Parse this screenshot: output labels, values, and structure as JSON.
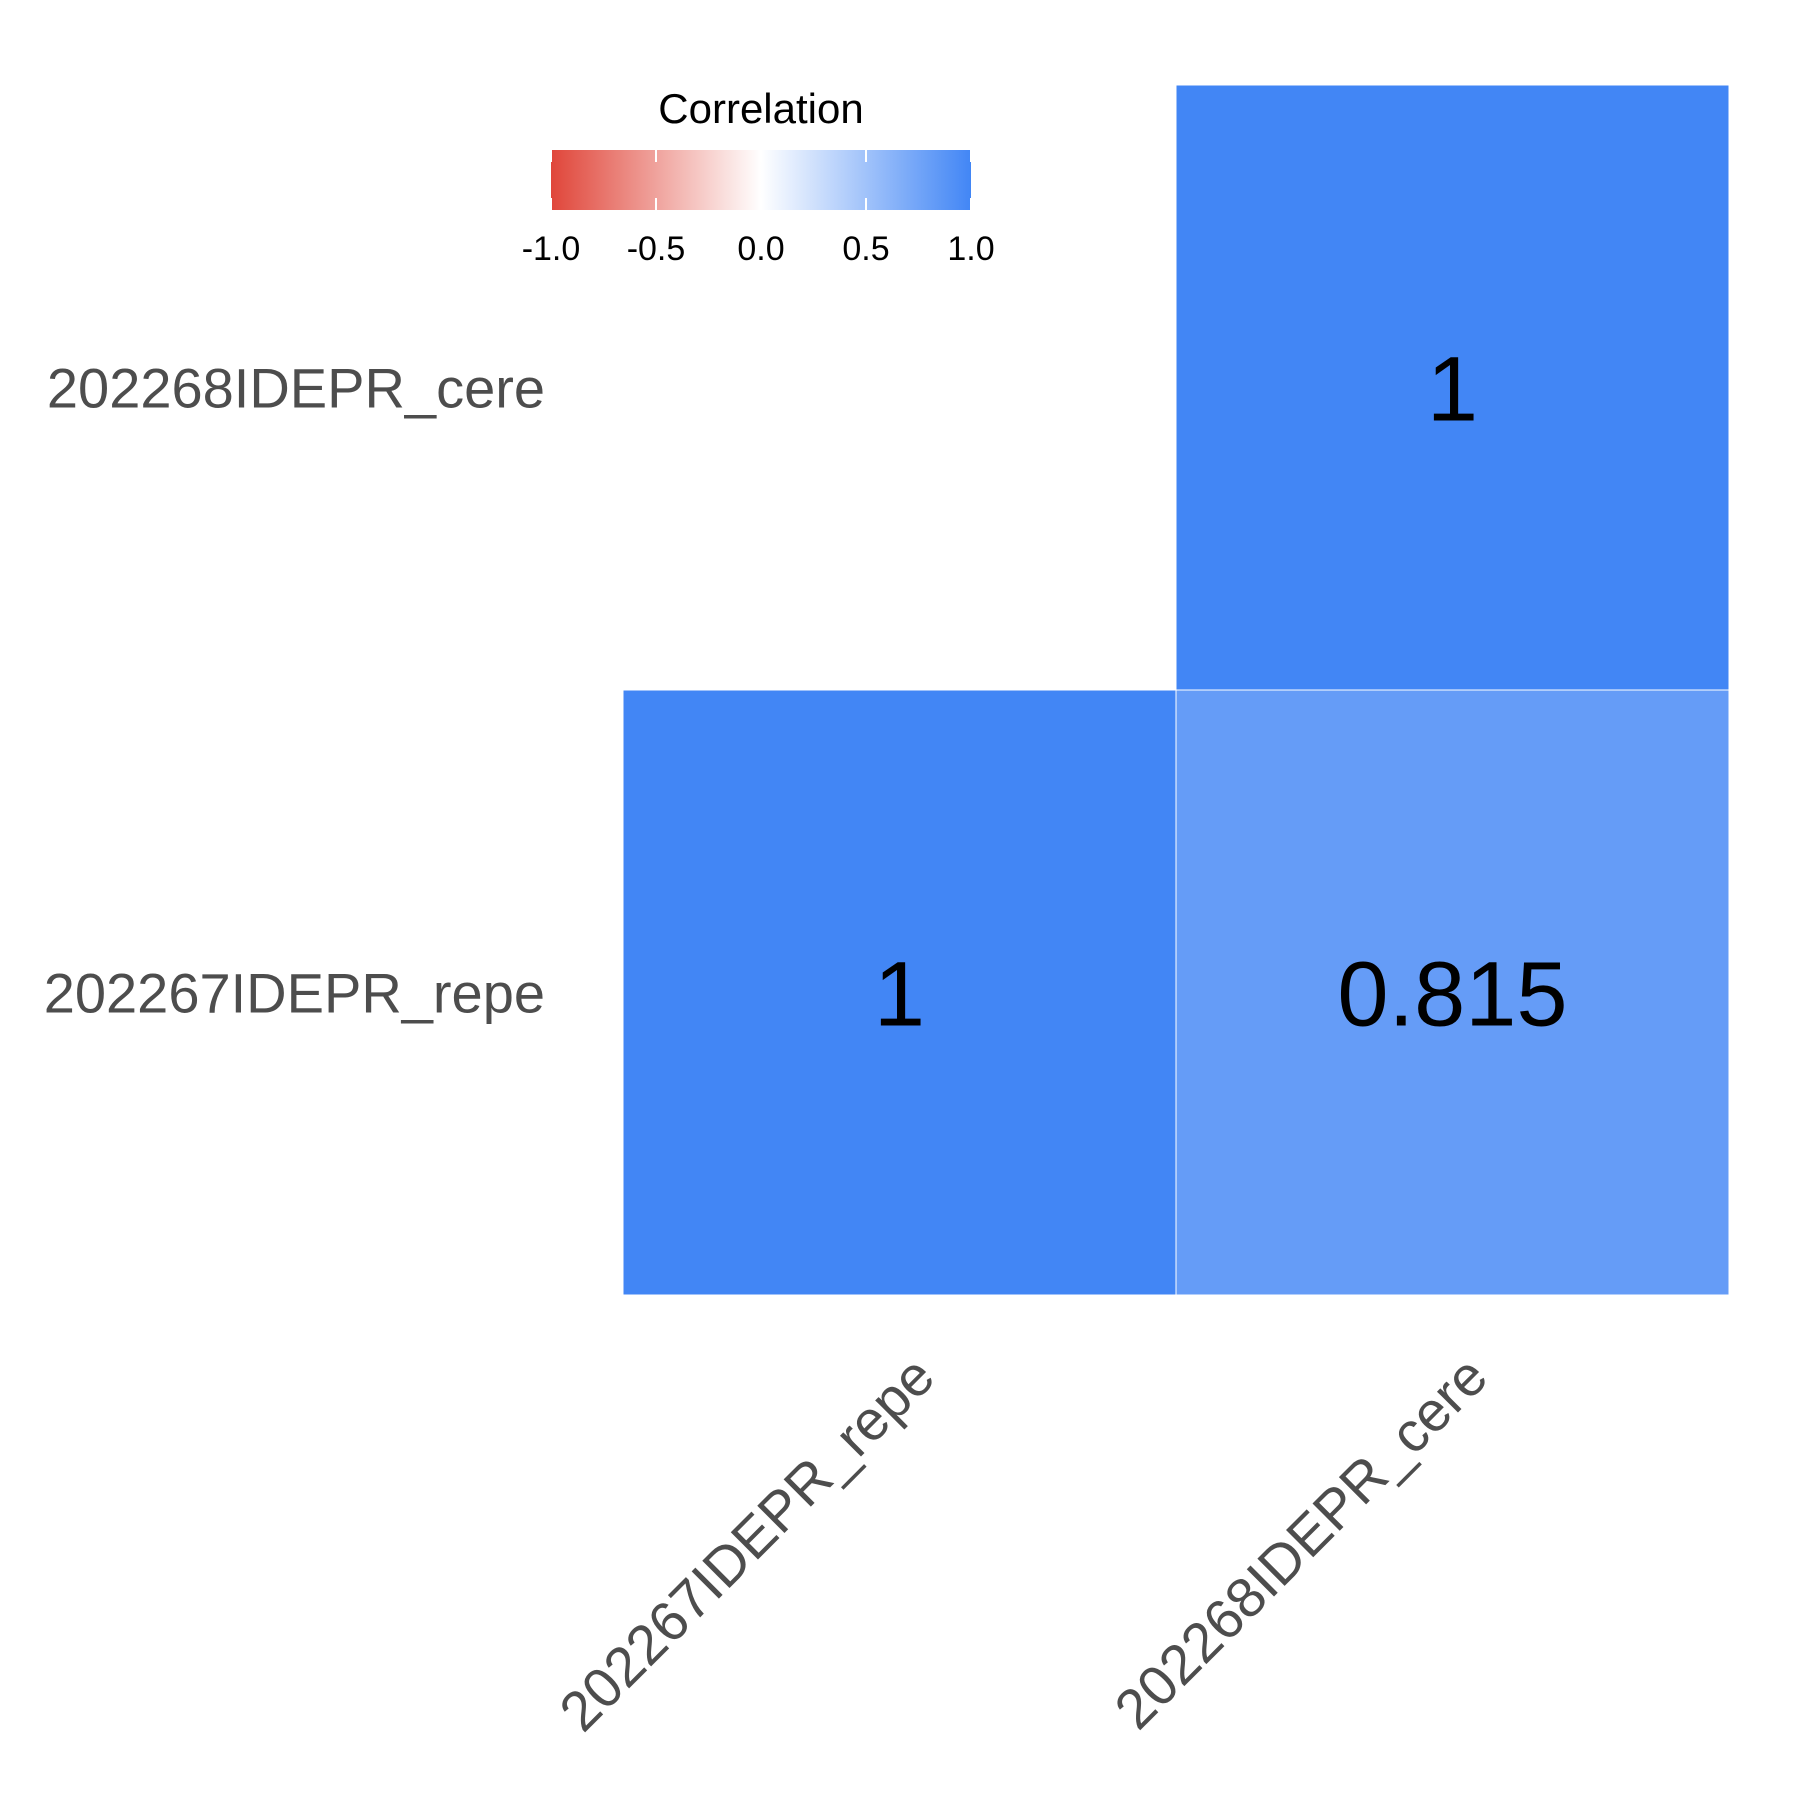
{
  "chart_data": {
    "type": "heatmap",
    "title": "",
    "x_labels": [
      "202267IDEPR_repe",
      "202268IDEPR_cere"
    ],
    "y_labels": [
      "202267IDEPR_repe",
      "202268IDEPR_cere"
    ],
    "cells": [
      {
        "x": "202267IDEPR_repe",
        "y": "202267IDEPR_repe",
        "value": 1,
        "label": "1"
      },
      {
        "x": "202268IDEPR_cere",
        "y": "202267IDEPR_repe",
        "value": 0.815,
        "label": "0.815"
      },
      {
        "x": "202268IDEPR_cere",
        "y": "202268IDEPR_cere",
        "value": 1,
        "label": "1"
      }
    ],
    "legend": {
      "title": "Correlation",
      "range": [
        -1,
        1
      ],
      "ticks": [
        "-1.0",
        "-0.5",
        "0.0",
        "0.5",
        "1.0"
      ],
      "tick_values": [
        -1,
        -0.5,
        0,
        0.5,
        1
      ],
      "colors": {
        "low": "#e0463a",
        "mid": "#ffffff",
        "high": "#4286f5"
      },
      "position": "top-center"
    }
  }
}
